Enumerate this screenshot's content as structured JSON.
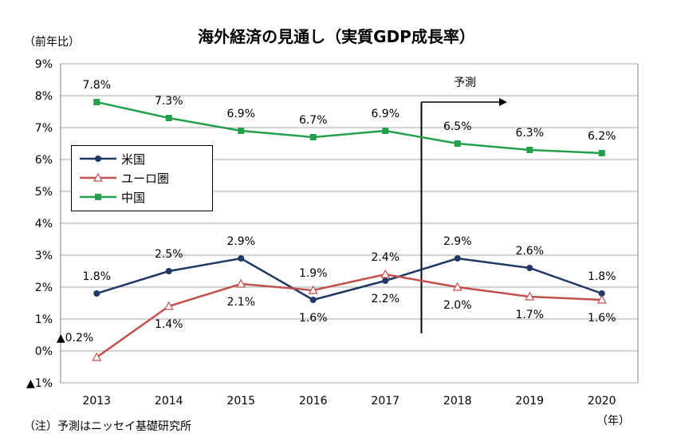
{
  "title": "海外経済の見通し（実質GDP成長率）",
  "unit_label": "（前年比）",
  "year_label": "（年）",
  "note": "（注）予測はニッセイ基礎研究所",
  "forecast_label": "予測",
  "colors": {
    "us": "#1f3864",
    "euro": "#c0504d",
    "china": "#22a04b",
    "grid": "#a6a6a6"
  },
  "chart_data": {
    "type": "line",
    "categories": [
      "2013",
      "2014",
      "2015",
      "2016",
      "2017",
      "2018",
      "2019",
      "2020"
    ],
    "ylim": [
      -1,
      9
    ],
    "yticks": [
      -1,
      0,
      1,
      2,
      3,
      4,
      5,
      6,
      7,
      8,
      9
    ],
    "ytick_labels": [
      "▲1%",
      "0%",
      "1%",
      "2%",
      "3%",
      "4%",
      "5%",
      "6%",
      "7%",
      "8%",
      "9%"
    ],
    "grid": true,
    "legend_position": "left-middle",
    "forecast_start_between": [
      "2017",
      "2018"
    ],
    "series": [
      {
        "name": "米国",
        "key": "us",
        "marker": "circle",
        "values": [
          1.8,
          2.5,
          2.9,
          1.6,
          2.2,
          2.9,
          2.6,
          1.8
        ],
        "labels": [
          "1.8%",
          "2.5%",
          "2.9%",
          "1.6%",
          "2.2%",
          "2.9%",
          "2.6%",
          "1.8%"
        ],
        "label_side": [
          "above",
          "above",
          "above",
          "below",
          "below",
          "above",
          "above",
          "above"
        ]
      },
      {
        "name": "ユーロ圏",
        "key": "euro",
        "marker": "triangle",
        "values": [
          -0.2,
          1.4,
          2.1,
          1.9,
          2.4,
          2.0,
          1.7,
          1.6
        ],
        "labels": [
          "▲0.2%",
          "1.4%",
          "2.1%",
          "1.9%",
          "2.4%",
          "2.0%",
          "1.7%",
          "1.6%"
        ],
        "label_side": [
          "left",
          "below",
          "below",
          "above",
          "above",
          "below",
          "below",
          "below"
        ]
      },
      {
        "name": "中国",
        "key": "china",
        "marker": "square",
        "values": [
          7.8,
          7.3,
          6.9,
          6.7,
          6.9,
          6.5,
          6.3,
          6.2
        ],
        "labels": [
          "7.8%",
          "7.3%",
          "6.9%",
          "6.7%",
          "6.9%",
          "6.5%",
          "6.3%",
          "6.2%"
        ],
        "label_side": [
          "above",
          "above",
          "above",
          "above",
          "above",
          "above",
          "above",
          "above"
        ]
      }
    ]
  }
}
